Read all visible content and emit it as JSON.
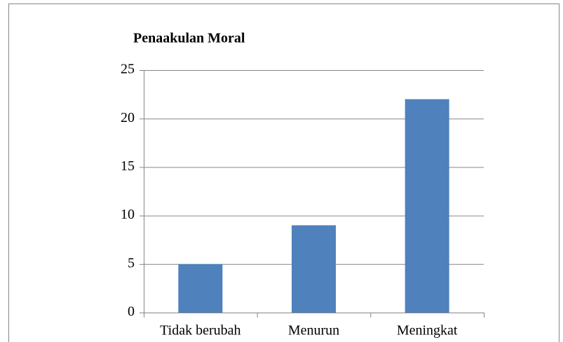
{
  "chart_data": {
    "type": "bar",
    "title": "Penaakulan Moral",
    "categories": [
      "Tidak berubah",
      "Menurun",
      "Meningkat"
    ],
    "values": [
      5,
      9,
      22
    ],
    "color": "#4f81bd",
    "ylim": [
      0,
      25
    ],
    "yticks": [
      0,
      5,
      10,
      15,
      20,
      25
    ],
    "grid": true
  }
}
